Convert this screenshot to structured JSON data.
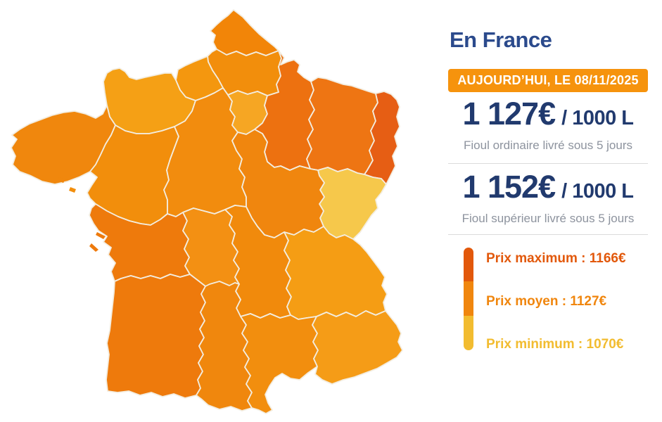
{
  "panel": {
    "title": "En France",
    "badge": "AUJOURD’HUI, LE 08/11/2025",
    "prices": [
      {
        "amount": "1 127€",
        "unit": "/ 1000 L",
        "description": "Fioul ordinaire livré sous 5 jours"
      },
      {
        "amount": "1 152€",
        "unit": "/ 1000 L",
        "description": "Fioul supérieur livré sous 5 jours"
      }
    ],
    "legend": [
      {
        "label": "Prix maximum : 1166€",
        "value": 1166,
        "color": "#E2580B"
      },
      {
        "label": "Prix moyen : 1127€",
        "value": 1127,
        "color": "#F0860E"
      },
      {
        "label": "Prix minimum : 1070€",
        "value": 1070,
        "color": "#F2BC30"
      }
    ]
  },
  "colors": {
    "badge_bg": "#F6930D",
    "title_blue": "#2B4A8C",
    "price_navy": "#213A6E",
    "subtitle_gray": "#8D939E",
    "divider": "#DBDBDB",
    "map_border": "#F3EDE0"
  },
  "map": {
    "regions": [
      {
        "key": "nord-pas-de-calais",
        "color": "#F28508"
      },
      {
        "key": "picardie",
        "color": "#F28E0C"
      },
      {
        "key": "haute-normandie",
        "color": "#F4970F"
      },
      {
        "key": "basse-normandie",
        "color": "#F5A015"
      },
      {
        "key": "bretagne",
        "color": "#F0870D"
      },
      {
        "key": "pays-de-la-loire",
        "color": "#F28E0C"
      },
      {
        "key": "centre",
        "color": "#F28C0E"
      },
      {
        "key": "ile-de-france",
        "color": "#F6A623"
      },
      {
        "key": "champagne-ardenne",
        "color": "#ED7110"
      },
      {
        "key": "lorraine",
        "color": "#EE7513"
      },
      {
        "key": "alsace",
        "color": "#E65E14"
      },
      {
        "key": "franche-comte",
        "color": "#F6C84B"
      },
      {
        "key": "bourgogne",
        "color": "#F0860E"
      },
      {
        "key": "poitou-charentes",
        "color": "#EE7A0C"
      },
      {
        "key": "limousin",
        "color": "#F39013"
      },
      {
        "key": "auvergne",
        "color": "#F18A0C"
      },
      {
        "key": "rhone-alpes",
        "color": "#F59D14"
      },
      {
        "key": "aquitaine",
        "color": "#EE7A0C"
      },
      {
        "key": "midi-pyrenees",
        "color": "#F0870D"
      },
      {
        "key": "languedoc-roussillon",
        "color": "#F28E0E"
      },
      {
        "key": "paca",
        "color": "#F59C17"
      }
    ],
    "islands": [
      {
        "key": "island-1",
        "color": "#F0870D"
      },
      {
        "key": "island-2",
        "color": "#F28E0C"
      },
      {
        "key": "island-3",
        "color": "#EE7A0C"
      },
      {
        "key": "island-4",
        "color": "#EE7A0C"
      }
    ]
  }
}
